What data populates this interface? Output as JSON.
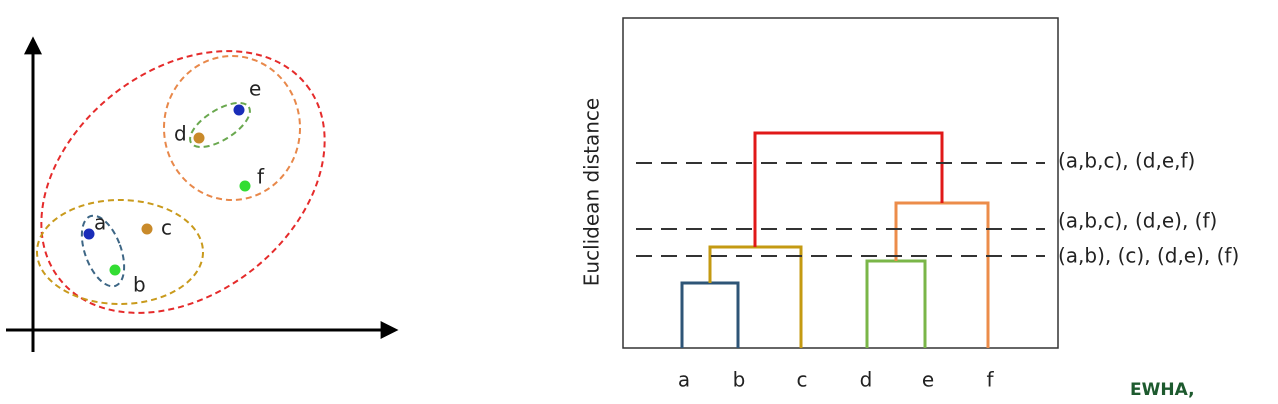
{
  "scatter": {
    "points": [
      "a",
      "b",
      "c",
      "d",
      "e",
      "f"
    ]
  },
  "dendrogram": {
    "y_label": "Euclidean distance",
    "leaves": [
      "a",
      "b",
      "c",
      "d",
      "e",
      "f"
    ],
    "cuts": [
      "(a,b,c), (d,e,f)",
      "(a,b,c), (d,e), (f)",
      "(a,b), (c), (d,e), (f)"
    ]
  },
  "logo": "EWHA,"
}
